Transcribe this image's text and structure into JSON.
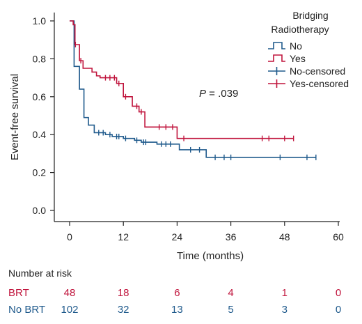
{
  "chart_data": {
    "type": "line",
    "xlabel": "Time (months)",
    "ylabel": "Event-free survival",
    "xlim": [
      0,
      60
    ],
    "ylim": [
      0,
      1.0
    ],
    "x_ticks": [
      "0",
      "12",
      "24",
      "36",
      "48",
      "60"
    ],
    "y_ticks": [
      "0.0",
      "0.2",
      "0.4",
      "0.6",
      "0.8",
      "1.0"
    ],
    "grid": false,
    "legend": {
      "title_line1": "Bridging",
      "title_line2": "Radiotherapy",
      "placement": "top-right",
      "entries": [
        {
          "label": "No",
          "style": "step",
          "color": "#1f5a8c"
        },
        {
          "label": "Yes",
          "style": "step",
          "color": "#c0143c"
        },
        {
          "label": "No-censored",
          "style": "censor",
          "color": "#1f5a8c"
        },
        {
          "label": "Yes-censored",
          "style": "censor",
          "color": "#c0143c"
        }
      ]
    },
    "annotation": {
      "p_label": "P",
      "p_value": " = .039"
    },
    "series": [
      {
        "name": "No",
        "color": "#1f5a8c",
        "steps": [
          [
            0,
            1.0
          ],
          [
            1,
            0.76
          ],
          [
            2.2,
            0.64
          ],
          [
            3.2,
            0.49
          ],
          [
            4.2,
            0.45
          ],
          [
            5.5,
            0.41
          ],
          [
            8,
            0.4
          ],
          [
            9.5,
            0.39
          ],
          [
            12,
            0.38
          ],
          [
            14.5,
            0.37
          ],
          [
            16,
            0.36
          ],
          [
            19.5,
            0.35
          ],
          [
            24.5,
            0.32
          ],
          [
            30.5,
            0.28
          ],
          [
            55,
            0.28
          ]
        ],
        "censored": [
          [
            6.5,
            0.41
          ],
          [
            7.5,
            0.41
          ],
          [
            9,
            0.4
          ],
          [
            10.5,
            0.39
          ],
          [
            11,
            0.39
          ],
          [
            12.5,
            0.38
          ],
          [
            15,
            0.37
          ],
          [
            16.5,
            0.36
          ],
          [
            17,
            0.36
          ],
          [
            20.5,
            0.35
          ],
          [
            21.5,
            0.35
          ],
          [
            22.5,
            0.35
          ],
          [
            27,
            0.32
          ],
          [
            29,
            0.32
          ],
          [
            32.5,
            0.28
          ],
          [
            34.5,
            0.28
          ],
          [
            36,
            0.28
          ],
          [
            47,
            0.28
          ],
          [
            53,
            0.28
          ],
          [
            55,
            0.28
          ]
        ]
      },
      {
        "name": "Yes",
        "color": "#c0143c",
        "steps": [
          [
            0,
            1.0
          ],
          [
            0.8,
            0.98
          ],
          [
            1.2,
            0.875
          ],
          [
            2.2,
            0.79
          ],
          [
            3,
            0.75
          ],
          [
            5,
            0.73
          ],
          [
            6,
            0.71
          ],
          [
            6.8,
            0.7
          ],
          [
            10.5,
            0.67
          ],
          [
            12,
            0.6
          ],
          [
            14,
            0.55
          ],
          [
            15.5,
            0.52
          ],
          [
            16.8,
            0.44
          ],
          [
            24,
            0.38
          ],
          [
            50,
            0.38
          ]
        ],
        "censored": [
          [
            1.3,
            0.875
          ],
          [
            2.5,
            0.79
          ],
          [
            8,
            0.7
          ],
          [
            9,
            0.7
          ],
          [
            10,
            0.7
          ],
          [
            11,
            0.67
          ],
          [
            12.5,
            0.6
          ],
          [
            15,
            0.55
          ],
          [
            16,
            0.52
          ],
          [
            20,
            0.44
          ],
          [
            21.5,
            0.44
          ],
          [
            23,
            0.44
          ],
          [
            25.5,
            0.38
          ],
          [
            43,
            0.38
          ],
          [
            44.5,
            0.38
          ],
          [
            48,
            0.38
          ],
          [
            50,
            0.38
          ]
        ]
      }
    ],
    "risk_table": {
      "title": "Number at risk",
      "rows": [
        {
          "label": "BRT",
          "color": "#c0143c",
          "values": [
            "48",
            "18",
            "6",
            "4",
            "1",
            "0"
          ]
        },
        {
          "label": "No BRT",
          "color": "#1f5a8c",
          "values": [
            "102",
            "32",
            "13",
            "5",
            "3",
            "0"
          ]
        }
      ]
    }
  }
}
